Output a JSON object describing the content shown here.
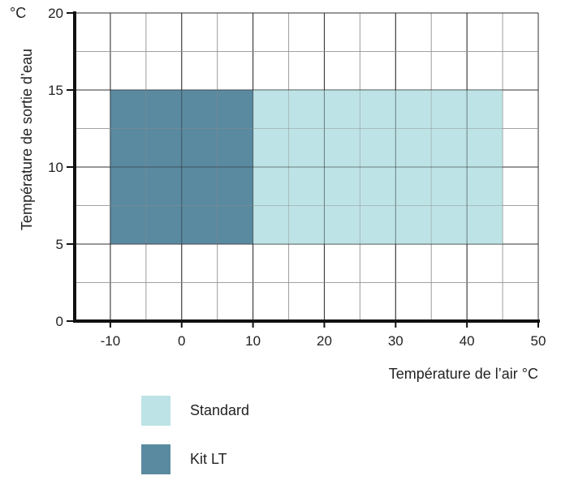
{
  "chart_data": {
    "type": "area",
    "title": "",
    "xlabel": "Température de l’air  °C",
    "ylabel": "Température de sortie d’eau",
    "y_unit": "°C",
    "xlim": [
      -15,
      50
    ],
    "ylim": [
      0,
      20
    ],
    "x_ticks": [
      -10,
      0,
      10,
      20,
      30,
      40,
      50
    ],
    "y_ticks": [
      0,
      5,
      10,
      15,
      20
    ],
    "grid": true,
    "legend_position": "bottom-left",
    "series": [
      {
        "name": "Standard",
        "x_range": [
          10,
          45
        ],
        "y_range": [
          5,
          15
        ],
        "color": "#bde3e6"
      },
      {
        "name": "Kit LT",
        "x_range": [
          -10,
          10
        ],
        "y_range": [
          5,
          15
        ],
        "color": "#5a8aa0"
      }
    ]
  }
}
